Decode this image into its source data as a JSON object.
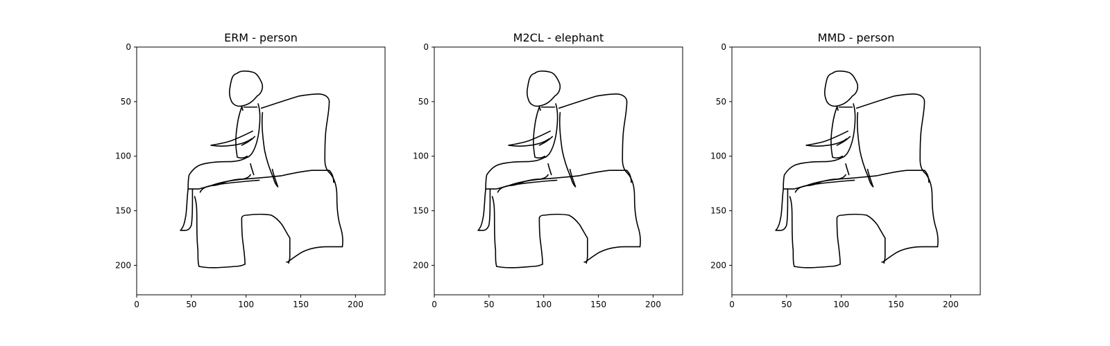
{
  "chart_data": [
    {
      "type": "image",
      "title": "ERM - person",
      "xlim": [
        0,
        227
      ],
      "ylim": [
        227,
        0
      ],
      "x_ticks": [
        0,
        50,
        100,
        150,
        200
      ],
      "y_ticks": [
        0,
        50,
        100,
        150,
        200
      ],
      "image_content": "line sketch of a person seated in an armchair"
    },
    {
      "type": "image",
      "title": "M2CL - elephant",
      "xlim": [
        0,
        227
      ],
      "ylim": [
        227,
        0
      ],
      "x_ticks": [
        0,
        50,
        100,
        150,
        200
      ],
      "y_ticks": [
        0,
        50,
        100,
        150,
        200
      ],
      "image_content": "line sketch of a person seated in an armchair"
    },
    {
      "type": "image",
      "title": "MMD - person",
      "xlim": [
        0,
        227
      ],
      "ylim": [
        227,
        0
      ],
      "x_ticks": [
        0,
        50,
        100,
        150,
        200
      ],
      "y_ticks": [
        0,
        50,
        100,
        150,
        200
      ],
      "image_content": "line sketch of a person seated in an armchair"
    }
  ]
}
